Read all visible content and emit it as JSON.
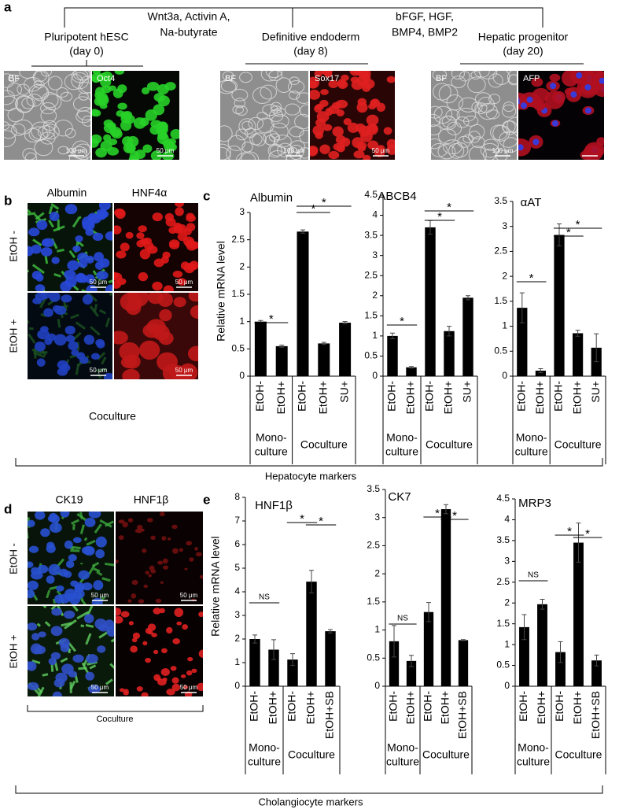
{
  "panel_a": {
    "label": "a",
    "treatments": [
      [
        "Wnt3a, Activin A,",
        "Na-butyrate"
      ],
      [
        "bFGF, HGF,",
        "BMP4, BMP2"
      ]
    ],
    "stages": [
      {
        "name": "Pluripotent hESC",
        "day": "(day 0)",
        "images": [
          "BF",
          "Oct4"
        ],
        "scale_bars": [
          "100 μm",
          "50 μm"
        ]
      },
      {
        "name": "Definitive endoderm",
        "day": "(day 8)",
        "images": [
          "BF",
          "Sox17"
        ],
        "scale_bars": [
          "100 μm",
          "50 μm"
        ]
      },
      {
        "name": "Hepatic progenitor",
        "day": "(day 20)",
        "images": [
          "BF",
          "AFP"
        ],
        "scale_bars": [
          "100 μm"
        ]
      }
    ]
  },
  "panel_b": {
    "label": "b",
    "columns": [
      "Albumin",
      "HNF4α"
    ],
    "rows": [
      "EtOH -",
      "EtOH +"
    ],
    "scale_bars": [
      "50 μm",
      "50 μm",
      "50 μm",
      "50 μm"
    ],
    "caption": "Coculture"
  },
  "panel_c": {
    "label": "c",
    "y_label": "Relative mRNA level",
    "groups": [
      [
        "Mono-",
        "culture"
      ],
      [
        "Coculture"
      ]
    ],
    "bracket": "Hepatocyte markers"
  },
  "panel_d": {
    "label": "d",
    "columns": [
      "CK19",
      "HNF1β"
    ],
    "rows": [
      "EtOH -",
      "EtOH +"
    ],
    "scale_bars": [
      "50 μm",
      "50 μm",
      "50 μm",
      "50 μm"
    ],
    "caption": "Coculture"
  },
  "panel_e": {
    "label": "e",
    "y_label": "Relative mRNA level",
    "groups": [
      [
        "Mono-",
        "culture"
      ],
      [
        "Coculture"
      ]
    ],
    "bracket": "Cholangiocyte markers"
  },
  "chart_data": [
    {
      "type": "bar",
      "title": "Albumin",
      "categories": [
        "EtOH-",
        "EtOH+",
        "EtOH-",
        "EtOH+",
        "SU+"
      ],
      "values": [
        1.0,
        0.55,
        2.65,
        0.6,
        0.98
      ],
      "errors": [
        0.02,
        0.02,
        0.03,
        0.02,
        0.02
      ],
      "color": "#000000",
      "ylim": [
        0,
        3
      ],
      "yticks": [
        0,
        0.5,
        1,
        1.5,
        2,
        2.5,
        3
      ],
      "annotations": [
        "*",
        "*",
        "*"
      ]
    },
    {
      "type": "bar",
      "title": "ABCB4",
      "categories": [
        "EtOH-",
        "EtOH+",
        "EtOH-",
        "EtOH+",
        "SU+"
      ],
      "values": [
        1.0,
        0.22,
        3.7,
        1.12,
        1.95
      ],
      "errors": [
        0.07,
        0.02,
        0.17,
        0.12,
        0.05
      ],
      "color": "#000000",
      "ylim": [
        0,
        4.5
      ],
      "yticks": [
        0,
        0.5,
        1,
        1.5,
        2,
        2.5,
        3,
        3.5,
        4,
        4.5
      ],
      "annotations": [
        "*",
        "*",
        "*"
      ]
    },
    {
      "type": "bar",
      "title": "αAT",
      "categories": [
        "EtOH-",
        "EtOH+",
        "EtOH-",
        "EtOH+",
        "SU+"
      ],
      "values": [
        1.37,
        0.11,
        2.83,
        0.86,
        0.57
      ],
      "errors": [
        0.3,
        0.04,
        0.22,
        0.06,
        0.28
      ],
      "color": "#000000",
      "ylim": [
        0,
        3.5
      ],
      "yticks": [
        0,
        0.5,
        1,
        1.5,
        2,
        2.5,
        3,
        3.5
      ],
      "annotations": [
        "*",
        "*",
        "*"
      ]
    },
    {
      "type": "bar",
      "title": "HNF1β",
      "categories": [
        "EtOH-",
        "EtOH+",
        "EtOH-",
        "EtOH+",
        "EtOH+SB"
      ],
      "values": [
        2.0,
        1.55,
        1.13,
        4.43,
        2.33
      ],
      "errors": [
        0.17,
        0.42,
        0.25,
        0.48,
        0.07
      ],
      "color": "#000000",
      "ylim": [
        0,
        8
      ],
      "yticks": [
        0,
        1,
        2,
        3,
        4,
        5,
        6,
        7,
        8
      ],
      "annotations": [
        "NS",
        "*",
        "*"
      ]
    },
    {
      "type": "bar",
      "title": "CK7",
      "categories": [
        "EtOH-",
        "EtOH+",
        "EtOH-",
        "EtOH+",
        "EtOH+SB"
      ],
      "values": [
        0.8,
        0.45,
        1.32,
        3.15,
        0.82
      ],
      "errors": [
        0.28,
        0.1,
        0.17,
        0.08,
        0.01
      ],
      "color": "#000000",
      "ylim": [
        0,
        3.5
      ],
      "yticks": [
        0,
        0.5,
        1,
        1.5,
        2,
        2.5,
        3,
        3.5
      ],
      "annotations": [
        "NS",
        "*",
        "*"
      ]
    },
    {
      "type": "bar",
      "title": "MRP3",
      "categories": [
        "EtOH-",
        "EtOH+",
        "EtOH-",
        "EtOH+",
        "EtOH+SB"
      ],
      "values": [
        1.42,
        1.97,
        0.82,
        3.45,
        0.62
      ],
      "errors": [
        0.3,
        0.12,
        0.25,
        0.47,
        0.13
      ],
      "color": "#000000",
      "ylim": [
        0,
        4.5
      ],
      "yticks": [
        0,
        0.5,
        1,
        1.5,
        2,
        2.5,
        3,
        3.5,
        4,
        4.5
      ],
      "annotations": [
        "NS",
        "*",
        "*"
      ]
    }
  ]
}
